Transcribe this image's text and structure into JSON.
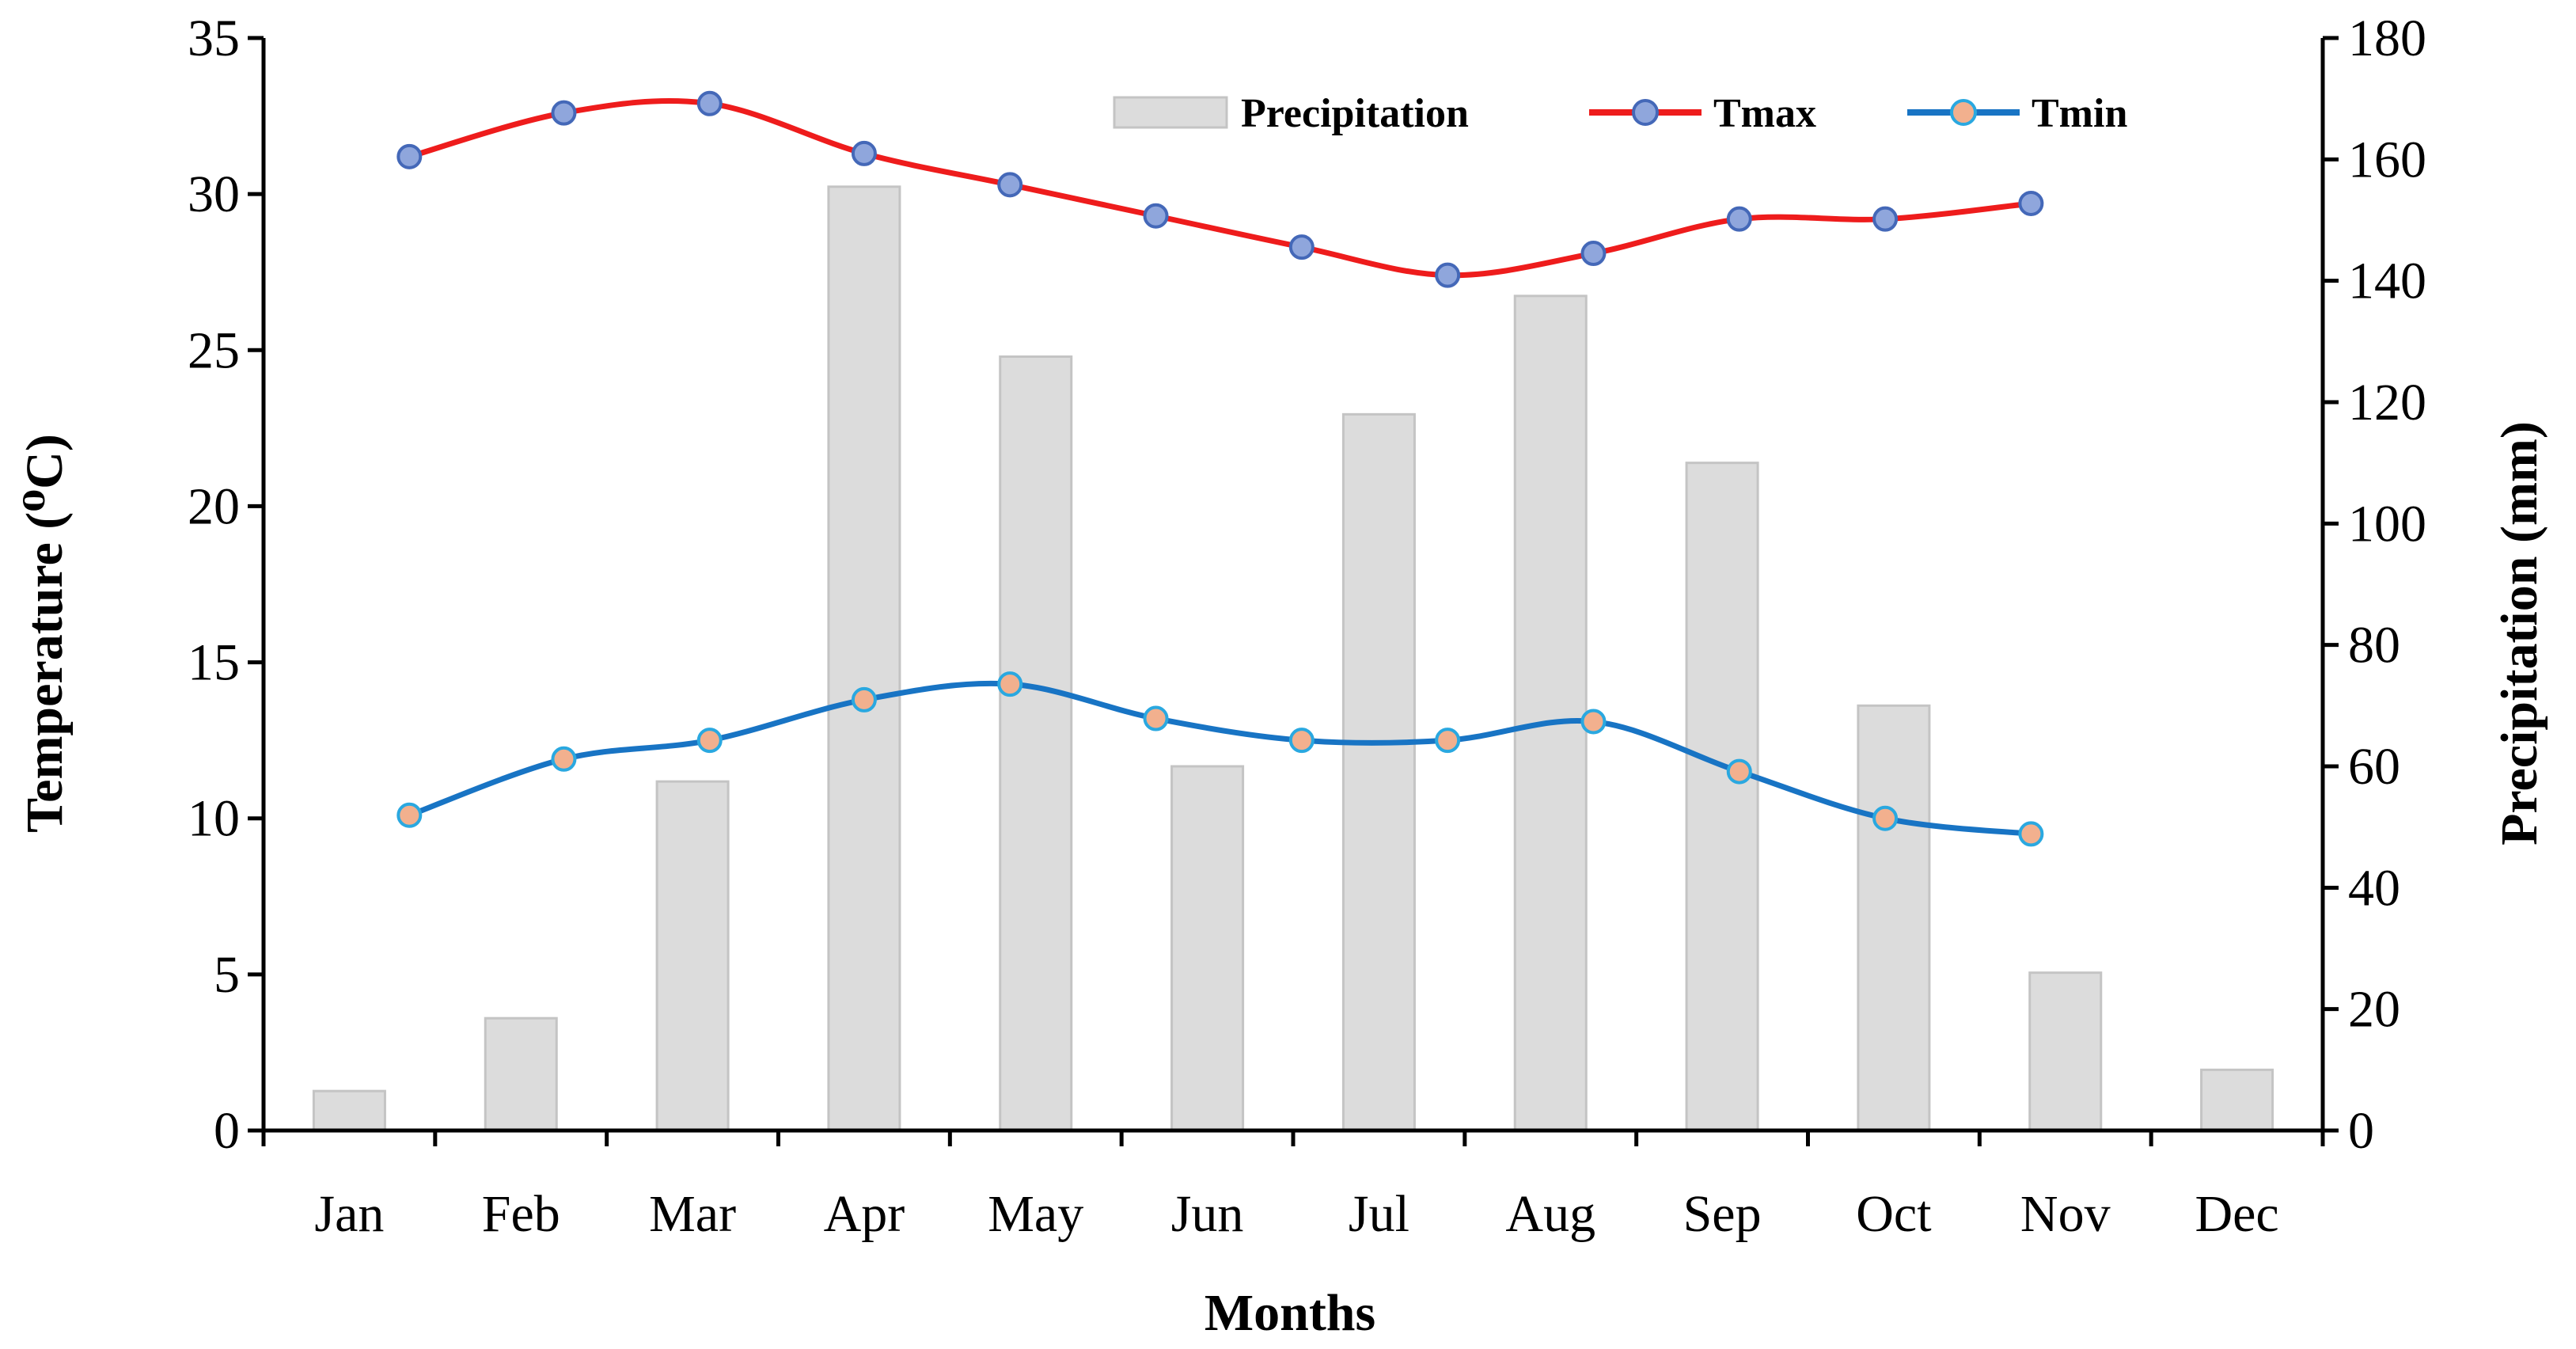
{
  "chart_data": {
    "type": "bar+line",
    "categories": [
      "Jan",
      "Feb",
      "Mar",
      "Apr",
      "May",
      "Jun",
      "Jul",
      "Aug",
      "Sep",
      "Oct",
      "Nov",
      "Dec"
    ],
    "x_axis_title": "Months",
    "left_axis": {
      "title": "Temperature (⁰C)",
      "min": 0,
      "max": 35,
      "ticks": [
        "0",
        "5",
        "10",
        "15",
        "20",
        "25",
        "30",
        "35"
      ]
    },
    "right_axis": {
      "title": "Precipitation (mm)",
      "min": 0,
      "max": 180,
      "ticks": [
        "0",
        "20",
        "40",
        "60",
        "80",
        "100",
        "120",
        "140",
        "160",
        "180"
      ]
    },
    "bars": {
      "name": "Precipitation",
      "axis": "right",
      "color": "#dcdcdc",
      "edge_color": "#c4c4c4",
      "values": [
        6.5,
        18.5,
        57.5,
        155.5,
        127.5,
        60,
        118,
        137.5,
        110,
        70,
        26,
        10
      ]
    },
    "lines": [
      {
        "name": "Tmax",
        "axis": "left",
        "color": "#ee1c1c",
        "marker_fill": "#8fa6dc",
        "marker_edge": "#4468b8",
        "x": [
          0.35,
          1.25,
          2.1,
          3.0,
          3.85,
          4.7,
          5.55,
          6.4,
          7.25,
          8.1,
          8.95,
          9.8
        ],
        "values": [
          31.2,
          32.6,
          32.9,
          31.3,
          30.3,
          29.3,
          28.3,
          27.4,
          28.1,
          29.2,
          29.2,
          29.7
        ]
      },
      {
        "name": "Tmin",
        "axis": "left",
        "color": "#1874c4",
        "marker_fill": "#f2b08e",
        "marker_edge": "#2aa8e0",
        "x": [
          0.35,
          1.25,
          2.1,
          3.0,
          3.85,
          4.7,
          5.55,
          6.4,
          7.25,
          8.1,
          8.95,
          9.8
        ],
        "values": [
          10.1,
          11.9,
          12.5,
          13.8,
          14.3,
          13.2,
          12.5,
          12.5,
          13.1,
          11.5,
          10.0,
          9.5
        ]
      }
    ],
    "legend": {
      "placement": "top-right",
      "entries": [
        "Precipitation",
        "Tmax",
        "Tmin"
      ]
    }
  }
}
